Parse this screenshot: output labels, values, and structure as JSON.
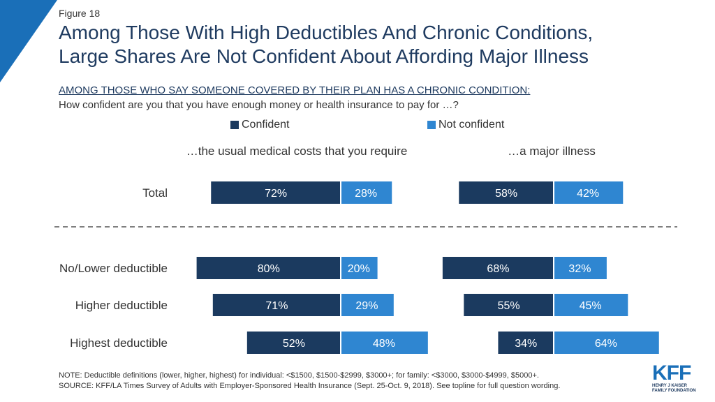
{
  "figure_label": "Figure 18",
  "title_line1": "Among Those With High Deductibles And Chronic Conditions,",
  "title_line2": "Large Shares Are Not Confident About Affording Major Illness",
  "subhead": "AMONG THOSE WHO SAY SOMEONE COVERED BY THEIR PLAN HAS A CHRONIC CONDITION:",
  "question": "How confident are you that you have enough money or health insurance to pay for …?",
  "colors": {
    "confident": "#1b3a5f",
    "not_confident": "#2f86d1",
    "accent": "#1a6fb8",
    "divider": "#555555"
  },
  "note_line1": "NOTE: Deductible definitions (lower, higher, highest) for individual: <$1500, $1500-$2999, $3000+; for family: <$3000, $3000-$4999, $5000+.",
  "note_line2": "SOURCE: KFF/LA Times Survey of Adults with Employer-Sponsored Health Insurance (Sept. 25-Oct. 9, 2018). See topline for full question wording.",
  "logo": {
    "mark": "KFF",
    "line1": "HENRY J KAISER",
    "line2": "FAMILY FOUNDATION"
  },
  "chart_data": {
    "type": "bar",
    "orientation": "diverging-horizontal",
    "legend": [
      "Confident",
      "Not confident"
    ],
    "legend_placement": "top",
    "panels": [
      {
        "title": "…the usual medical costs that you require",
        "categories": [
          "Total",
          "No/Lower deductible",
          "Higher deductible",
          "Highest deductible"
        ],
        "series": [
          {
            "name": "Confident",
            "values": [
              72,
              80,
              71,
              52
            ],
            "labels": [
              "72%",
              "80%",
              "71%",
              "52%"
            ]
          },
          {
            "name": "Not confident",
            "values": [
              28,
              20,
              29,
              48
            ],
            "labels": [
              "28%",
              "20%",
              "29%",
              "48%"
            ]
          }
        ]
      },
      {
        "title": "…a major illness",
        "categories": [
          "Total",
          "No/Lower deductible",
          "Higher deductible",
          "Highest deductible"
        ],
        "series": [
          {
            "name": "Confident",
            "values": [
              58,
              68,
              55,
              34
            ],
            "labels": [
              "58%",
              "68%",
              "55%",
              "34%"
            ]
          },
          {
            "name": "Not confident",
            "values": [
              42,
              32,
              45,
              64
            ],
            "labels": [
              "42%",
              "32%",
              "45%",
              "64%"
            ]
          }
        ]
      }
    ]
  }
}
